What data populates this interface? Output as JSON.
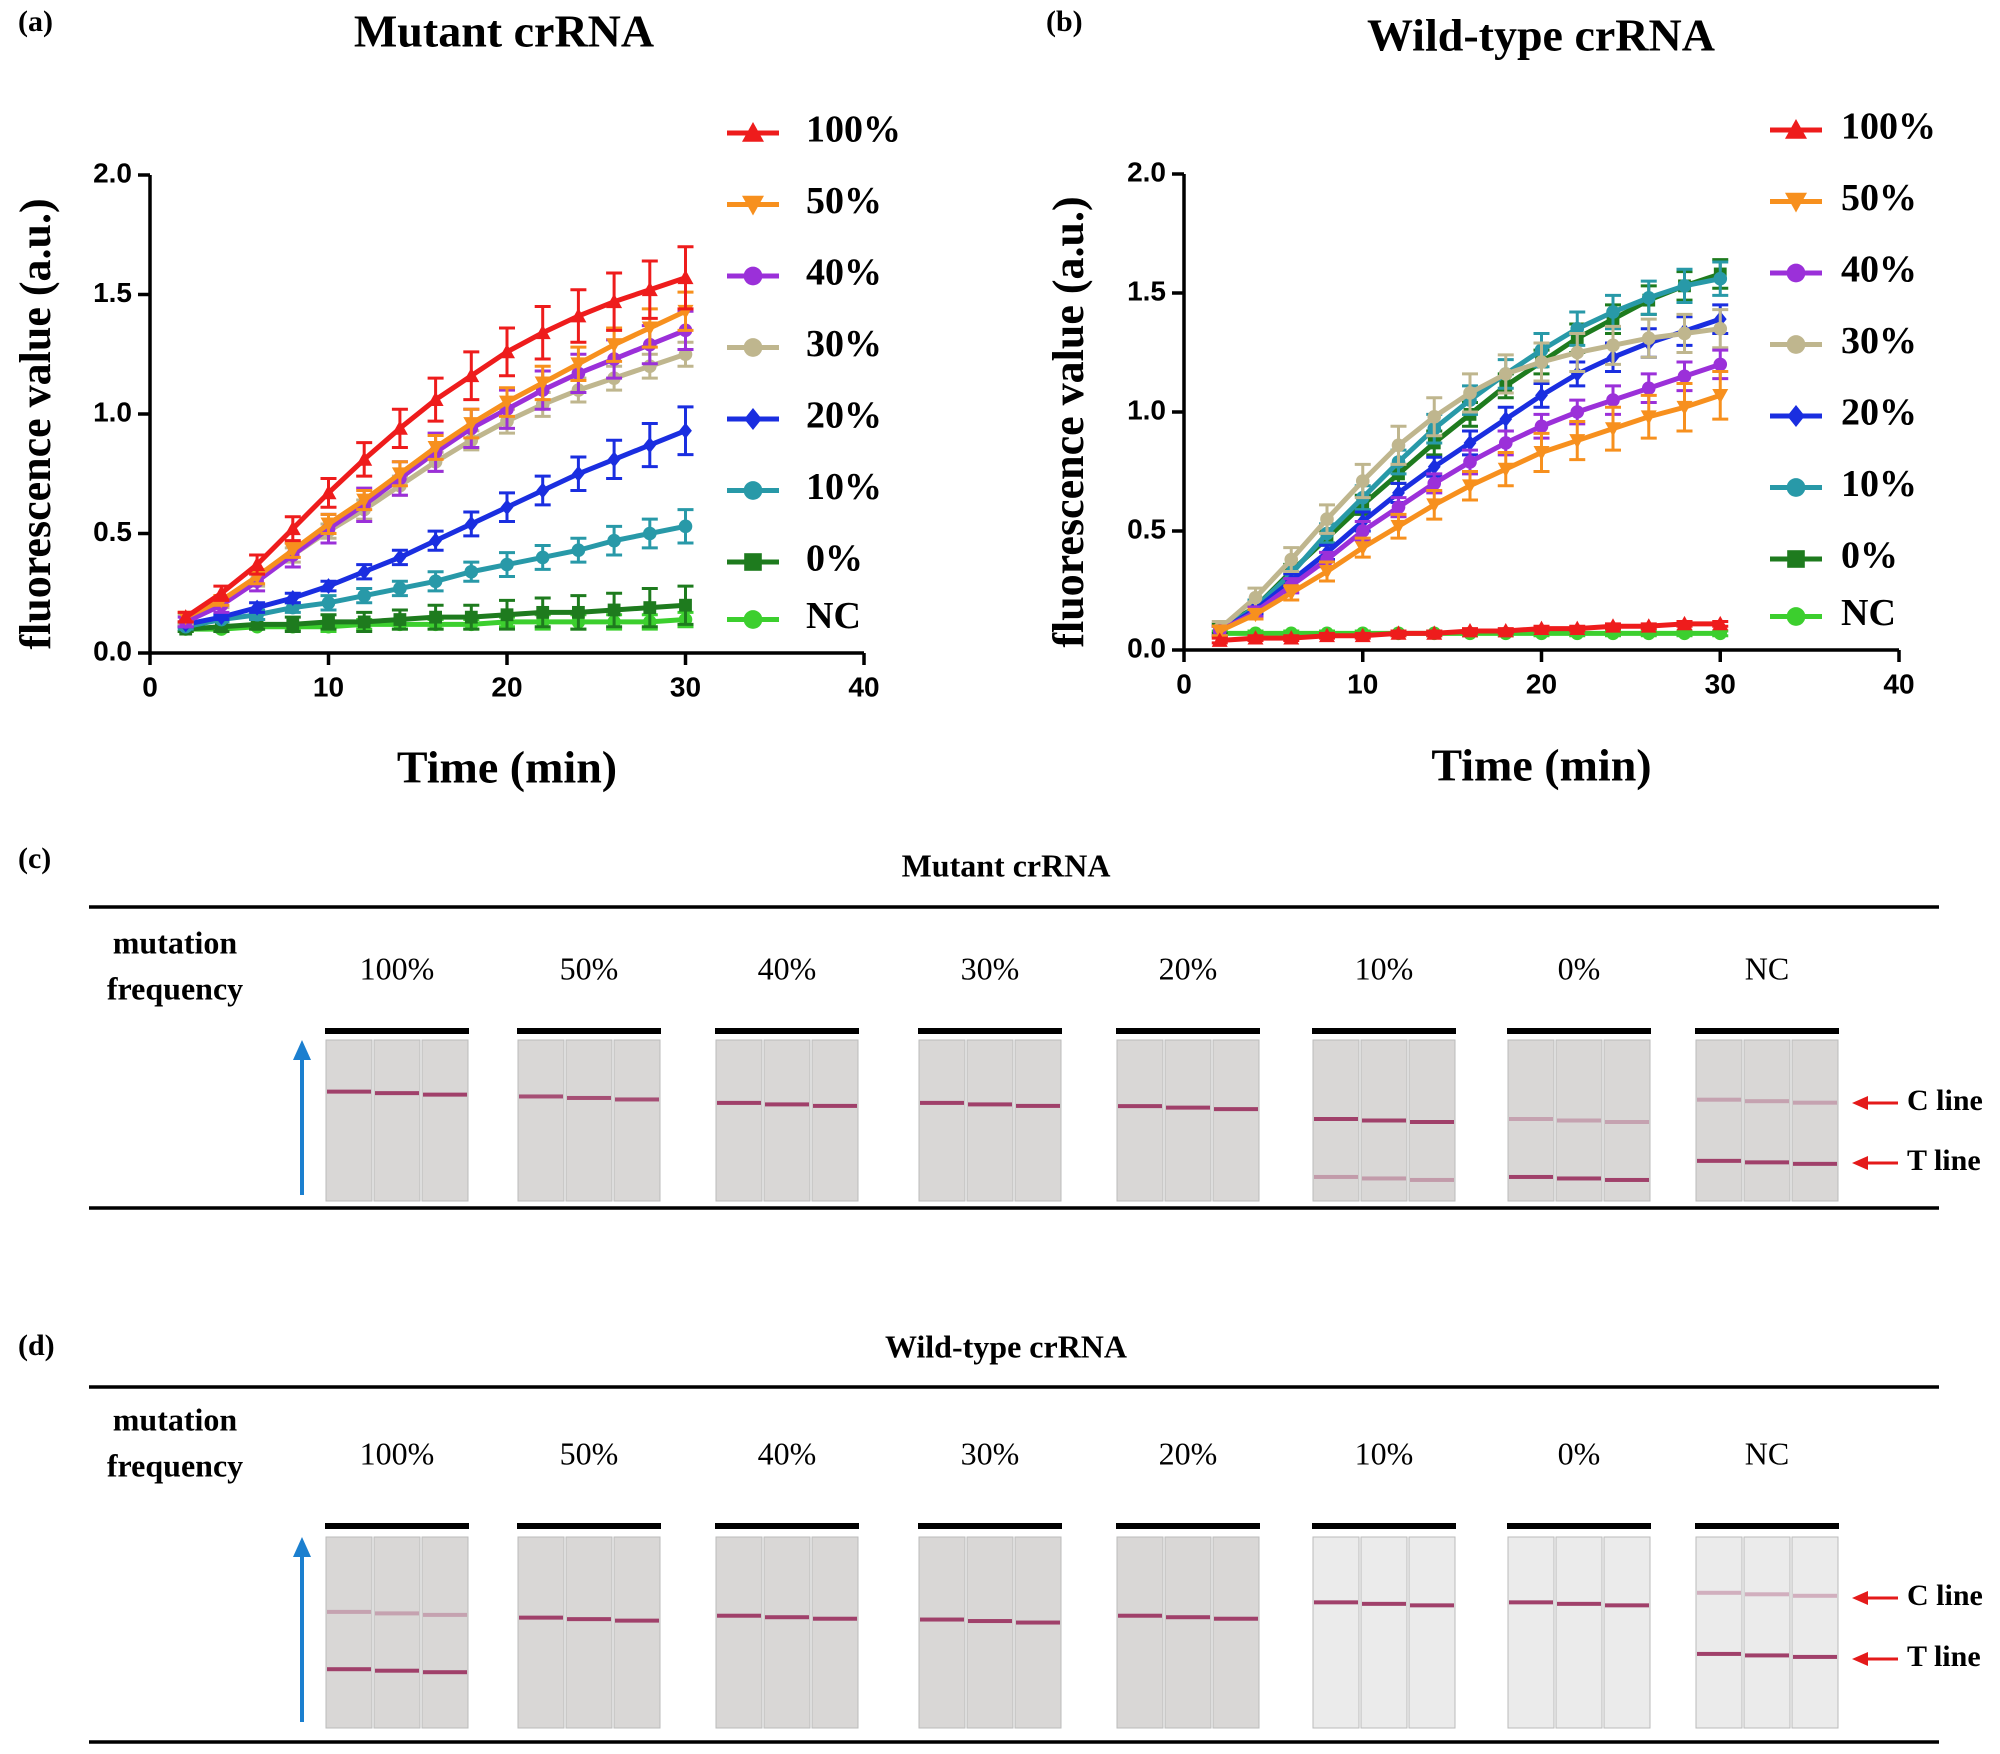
{
  "chart_data": [
    {
      "type": "line",
      "label": "(a)",
      "title": "Mutant crRNA",
      "xlabel": "Time (min)",
      "ylabel": "fluorescence value (a.u.)",
      "x": [
        2,
        4,
        6,
        8,
        10,
        12,
        14,
        16,
        18,
        20,
        22,
        24,
        26,
        28,
        30
      ],
      "xlim": [
        0,
        40
      ],
      "xticks": [
        0,
        10,
        20,
        30,
        40
      ],
      "ylim": [
        0,
        2
      ],
      "yticks": [
        {
          "value": 0,
          "label": "0.0"
        },
        0.5,
        {
          "value": 1,
          "label": "1.0"
        },
        1.5,
        {
          "value": 2,
          "label": "2.0"
        }
      ],
      "series": [
        {
          "name": "100%",
          "color": "#ee1c1c",
          "marker": "triangle-up",
          "values": [
            0.15,
            0.25,
            0.37,
            0.52,
            0.67,
            0.81,
            0.94,
            1.06,
            1.16,
            1.26,
            1.34,
            1.41,
            1.47,
            1.52,
            1.57
          ],
          "errors": [
            0.02,
            0.03,
            0.04,
            0.05,
            0.06,
            0.07,
            0.08,
            0.09,
            0.1,
            0.1,
            0.11,
            0.11,
            0.12,
            0.12,
            0.13
          ]
        },
        {
          "name": "50%",
          "color": "#f7901e",
          "marker": "triangle-down",
          "values": [
            0.15,
            0.22,
            0.32,
            0.43,
            0.54,
            0.64,
            0.75,
            0.86,
            0.96,
            1.05,
            1.13,
            1.21,
            1.29,
            1.36,
            1.43
          ],
          "errors": [
            0.02,
            0.02,
            0.03,
            0.03,
            0.04,
            0.04,
            0.05,
            0.05,
            0.06,
            0.06,
            0.07,
            0.07,
            0.07,
            0.08,
            0.08
          ]
        },
        {
          "name": "40%",
          "color": "#9b30d9",
          "marker": "circle",
          "values": [
            0.13,
            0.2,
            0.3,
            0.41,
            0.52,
            0.62,
            0.73,
            0.84,
            0.94,
            1.02,
            1.1,
            1.17,
            1.23,
            1.29,
            1.35
          ],
          "errors": [
            0.02,
            0.03,
            0.04,
            0.05,
            0.06,
            0.07,
            0.07,
            0.08,
            0.08,
            0.08,
            0.08,
            0.08,
            0.08,
            0.08,
            0.08
          ]
        },
        {
          "name": "30%",
          "color": "#bfb68e",
          "marker": "circle",
          "values": [
            0.14,
            0.21,
            0.31,
            0.41,
            0.51,
            0.6,
            0.7,
            0.8,
            0.89,
            0.97,
            1.04,
            1.1,
            1.15,
            1.2,
            1.25
          ],
          "errors": [
            0.02,
            0.02,
            0.03,
            0.03,
            0.03,
            0.04,
            0.04,
            0.04,
            0.04,
            0.05,
            0.05,
            0.05,
            0.05,
            0.05,
            0.05
          ]
        },
        {
          "name": "20%",
          "color": "#1a2ee0",
          "marker": "diamond",
          "values": [
            0.12,
            0.15,
            0.19,
            0.23,
            0.28,
            0.34,
            0.4,
            0.47,
            0.54,
            0.61,
            0.68,
            0.75,
            0.81,
            0.87,
            0.93
          ],
          "errors": [
            0.01,
            0.01,
            0.02,
            0.02,
            0.02,
            0.03,
            0.03,
            0.04,
            0.05,
            0.06,
            0.06,
            0.07,
            0.08,
            0.09,
            0.1
          ]
        },
        {
          "name": "10%",
          "color": "#2899a8",
          "marker": "circle",
          "values": [
            0.11,
            0.14,
            0.16,
            0.19,
            0.21,
            0.24,
            0.27,
            0.3,
            0.34,
            0.37,
            0.4,
            0.43,
            0.47,
            0.5,
            0.53
          ],
          "errors": [
            0.01,
            0.01,
            0.02,
            0.02,
            0.03,
            0.03,
            0.03,
            0.04,
            0.04,
            0.05,
            0.05,
            0.05,
            0.06,
            0.06,
            0.07
          ]
        },
        {
          "name": "0%",
          "color": "#1e7b1e",
          "marker": "square",
          "values": [
            0.1,
            0.11,
            0.12,
            0.12,
            0.13,
            0.13,
            0.14,
            0.15,
            0.15,
            0.16,
            0.17,
            0.17,
            0.18,
            0.19,
            0.2
          ],
          "errors": [
            0.01,
            0.02,
            0.02,
            0.03,
            0.03,
            0.04,
            0.04,
            0.05,
            0.05,
            0.06,
            0.06,
            0.07,
            0.07,
            0.08,
            0.08
          ]
        },
        {
          "name": "NC",
          "color": "#3ccf2e",
          "marker": "circle",
          "values": [
            0.1,
            0.1,
            0.11,
            0.11,
            0.11,
            0.12,
            0.12,
            0.12,
            0.12,
            0.13,
            0.13,
            0.13,
            0.13,
            0.13,
            0.14
          ],
          "errors": [
            0.01,
            0.01,
            0.01,
            0.01,
            0.02,
            0.02,
            0.02,
            0.02,
            0.02,
            0.02,
            0.03,
            0.03,
            0.03,
            0.03,
            0.03
          ]
        }
      ]
    },
    {
      "type": "line",
      "label": "(b)",
      "title": "Wild-type crRNA",
      "xlabel": "Time (min)",
      "ylabel": "fluorescence value (a.u.)",
      "x": [
        2,
        4,
        6,
        8,
        10,
        12,
        14,
        16,
        18,
        20,
        22,
        24,
        26,
        28,
        30
      ],
      "xlim": [
        0,
        40
      ],
      "xticks": [
        0,
        10,
        20,
        30,
        40
      ],
      "ylim": [
        0,
        2
      ],
      "yticks": [
        {
          "value": 0,
          "label": "0.0"
        },
        0.5,
        {
          "value": 1,
          "label": "1.0"
        },
        1.5,
        {
          "value": 2,
          "label": "2.0"
        }
      ],
      "series": [
        {
          "name": "100%",
          "color": "#ee1c1c",
          "marker": "triangle-up",
          "values": [
            0.04,
            0.05,
            0.05,
            0.06,
            0.06,
            0.07,
            0.07,
            0.08,
            0.08,
            0.09,
            0.09,
            0.1,
            0.1,
            0.11,
            0.11
          ],
          "errors": [
            0.01,
            0.01,
            0.01,
            0.01,
            0.01,
            0.01,
            0.01,
            0.01,
            0.01,
            0.01,
            0.01,
            0.01,
            0.01,
            0.01,
            0.01
          ]
        },
        {
          "name": "50%",
          "color": "#f7901e",
          "marker": "triangle-down",
          "values": [
            0.08,
            0.15,
            0.24,
            0.33,
            0.43,
            0.52,
            0.61,
            0.69,
            0.76,
            0.83,
            0.88,
            0.93,
            0.98,
            1.02,
            1.07
          ],
          "errors": [
            0.02,
            0.02,
            0.03,
            0.04,
            0.04,
            0.05,
            0.06,
            0.06,
            0.07,
            0.08,
            0.08,
            0.09,
            0.09,
            0.1,
            0.1
          ]
        },
        {
          "name": "40%",
          "color": "#9b30d9",
          "marker": "circle",
          "values": [
            0.08,
            0.16,
            0.27,
            0.38,
            0.5,
            0.6,
            0.7,
            0.79,
            0.87,
            0.94,
            1.0,
            1.05,
            1.1,
            1.15,
            1.2
          ],
          "errors": [
            0.02,
            0.02,
            0.03,
            0.03,
            0.04,
            0.04,
            0.04,
            0.05,
            0.05,
            0.05,
            0.05,
            0.06,
            0.06,
            0.06,
            0.06
          ]
        },
        {
          "name": "30%",
          "color": "#bfb68e",
          "marker": "circle",
          "values": [
            0.09,
            0.22,
            0.38,
            0.55,
            0.71,
            0.86,
            0.98,
            1.08,
            1.16,
            1.21,
            1.25,
            1.28,
            1.31,
            1.33,
            1.35
          ],
          "errors": [
            0.03,
            0.04,
            0.05,
            0.06,
            0.07,
            0.08,
            0.08,
            0.08,
            0.08,
            0.08,
            0.08,
            0.08,
            0.08,
            0.08,
            0.08
          ]
        },
        {
          "name": "20%",
          "color": "#1a2ee0",
          "marker": "diamond",
          "values": [
            0.08,
            0.17,
            0.29,
            0.41,
            0.54,
            0.66,
            0.77,
            0.87,
            0.97,
            1.07,
            1.16,
            1.23,
            1.29,
            1.34,
            1.39
          ],
          "errors": [
            0.02,
            0.02,
            0.03,
            0.03,
            0.04,
            0.04,
            0.04,
            0.05,
            0.05,
            0.05,
            0.05,
            0.06,
            0.06,
            0.06,
            0.06
          ]
        },
        {
          "name": "10%",
          "color": "#2899a8",
          "marker": "circle",
          "values": [
            0.08,
            0.18,
            0.32,
            0.49,
            0.64,
            0.79,
            0.93,
            1.05,
            1.16,
            1.26,
            1.35,
            1.42,
            1.48,
            1.53,
            1.56
          ],
          "errors": [
            0.02,
            0.03,
            0.03,
            0.04,
            0.05,
            0.05,
            0.06,
            0.06,
            0.06,
            0.07,
            0.07,
            0.07,
            0.07,
            0.07,
            0.07
          ]
        },
        {
          "name": "0%",
          "color": "#1e7b1e",
          "marker": "square",
          "values": [
            0.09,
            0.18,
            0.33,
            0.47,
            0.61,
            0.74,
            0.87,
            0.99,
            1.11,
            1.21,
            1.31,
            1.39,
            1.47,
            1.53,
            1.58
          ],
          "errors": [
            0.02,
            0.02,
            0.03,
            0.03,
            0.04,
            0.04,
            0.05,
            0.05,
            0.05,
            0.05,
            0.06,
            0.06,
            0.06,
            0.06,
            0.06
          ]
        },
        {
          "name": "NC",
          "color": "#3ccf2e",
          "marker": "circle",
          "values": [
            0.07,
            0.07,
            0.07,
            0.07,
            0.07,
            0.07,
            0.07,
            0.07,
            0.07,
            0.07,
            0.07,
            0.07,
            0.07,
            0.07,
            0.07
          ],
          "errors": [
            0.01,
            0.01,
            0.01,
            0.01,
            0.01,
            0.01,
            0.01,
            0.01,
            0.01,
            0.01,
            0.01,
            0.01,
            0.01,
            0.01,
            0.01
          ]
        }
      ]
    }
  ],
  "panels": [
    {
      "label": "(c)",
      "title": "Mutant crRNA",
      "row_label": [
        "mutation",
        "frequency"
      ],
      "columns": [
        "100%",
        "50%",
        "40%",
        "30%",
        "20%",
        "10%",
        "0%",
        "NC"
      ],
      "line_labels": [
        "C line",
        "T line"
      ]
    },
    {
      "label": "(d)",
      "title": "Wild-type crRNA",
      "row_label": [
        "mutation",
        "frequency"
      ],
      "columns": [
        "100%",
        "50%",
        "40%",
        "30%",
        "20%",
        "10%",
        "0%",
        "NC"
      ],
      "line_labels": [
        "C line",
        "T line"
      ]
    }
  ]
}
